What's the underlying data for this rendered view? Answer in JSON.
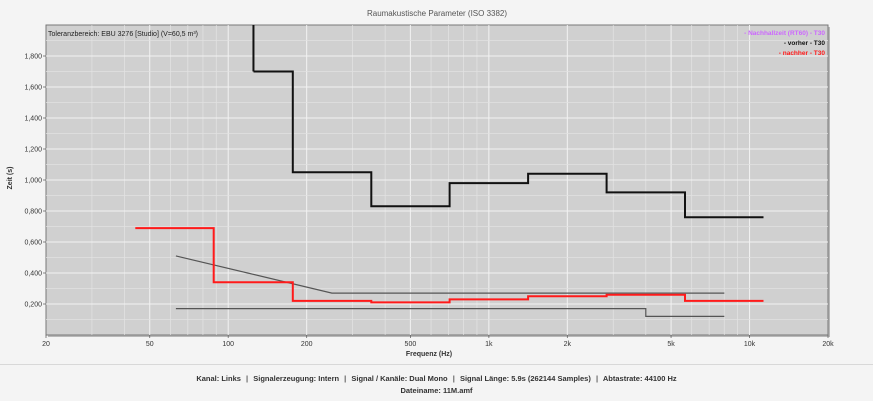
{
  "chart_data": {
    "type": "line",
    "title": "Raumakustische Parameter (ISO 3382)",
    "xlabel": "Frequenz (Hz)",
    "ylabel": "Zeit (s)",
    "x_scale": "log",
    "xlim": [
      20,
      20000
    ],
    "ylim": [
      0.0,
      2.0
    ],
    "x_ticks": [
      20,
      50,
      100,
      200,
      500,
      1000,
      2000,
      5000,
      10000,
      20000
    ],
    "x_tick_labels": [
      "20",
      "50",
      "100",
      "200",
      "500",
      "1k",
      "2k",
      "5k",
      "10k",
      "20k"
    ],
    "y_ticks": [
      0.2,
      0.4,
      0.6,
      0.8,
      1.0,
      1.2,
      1.4,
      1.6,
      1.8
    ],
    "y_tick_labels": [
      "0,200",
      "0,400",
      "0,600",
      "0,800",
      "1,000",
      "1,200",
      "1,400",
      "1,600",
      "1,800"
    ],
    "grid": true,
    "annotation": "Toleranzbereich: EBU 3276 [Studio] (V=60,5 m³)",
    "legend_position": "top-right",
    "legend": [
      {
        "label": "- Nachhallzeit (RT60) - T30",
        "color": "#cc66ff"
      },
      {
        "label": "- vorher - T30",
        "color": "#111111"
      },
      {
        "label": "- nachher - T30",
        "color": "#ff1a1a"
      }
    ],
    "series": [
      {
        "name": "vorher",
        "style": "step",
        "color": "#111111",
        "edges": [
          125,
          177,
          354,
          707,
          1414,
          2828,
          5657,
          11314
        ],
        "values": [
          1.7,
          1.05,
          0.83,
          0.98,
          1.04,
          0.92,
          0.76
        ]
      },
      {
        "name": "nachher",
        "style": "step",
        "color": "#ff1a1a",
        "edges": [
          44,
          88,
          177,
          354,
          707,
          1414,
          2828,
          5657,
          11314
        ],
        "values": [
          0.69,
          0.34,
          0.22,
          0.21,
          0.23,
          0.25,
          0.26,
          0.22
        ]
      },
      {
        "name": "Toleranz oben",
        "style": "line",
        "color": "#555555",
        "x": [
          63,
          250,
          8000
        ],
        "y": [
          0.51,
          0.27,
          0.27
        ]
      },
      {
        "name": "Toleranz unten",
        "style": "line",
        "color": "#555555",
        "x": [
          63,
          4000,
          4000,
          8000
        ],
        "y": [
          0.17,
          0.17,
          0.12,
          0.12
        ]
      }
    ]
  },
  "footer": {
    "kanal": "Kanal: Links",
    "signalerzeugung": "Signalerzeugung: Intern",
    "signal_kanaele": "Signal / Kanäle: Dual Mono",
    "signal_laenge": "Signal Länge: 5.9s (262144 Samples)",
    "abtastrate": "Abtastrate: 44100 Hz",
    "separator": "|",
    "dateiname": "Dateiname: 11M.amf"
  }
}
